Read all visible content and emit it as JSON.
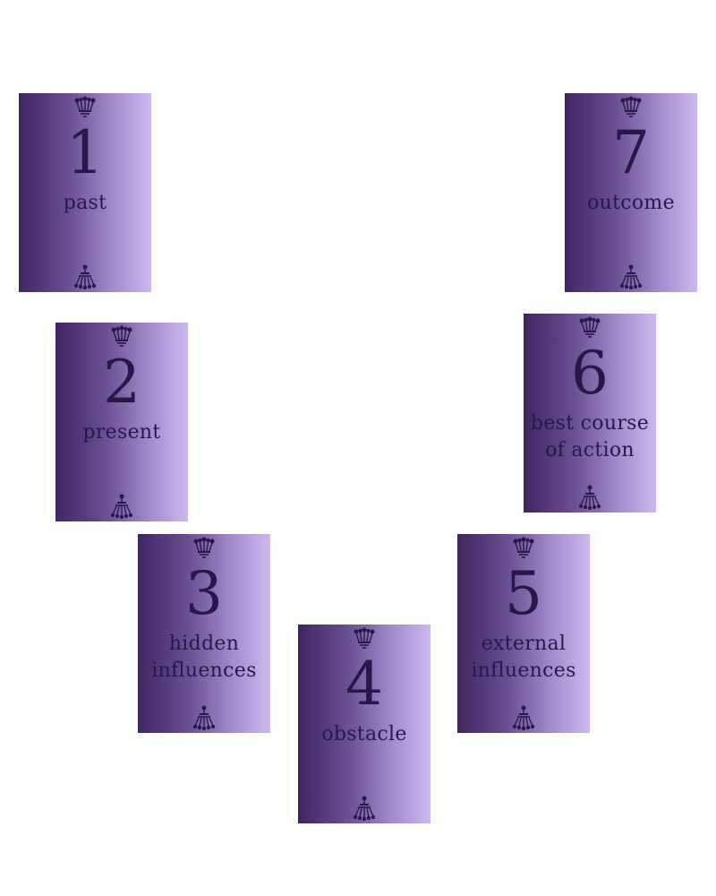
{
  "colors": {
    "card_gradient_dark": "#3f2560",
    "card_gradient_light": "#cdb8ee",
    "ink": "#2a1748",
    "background": "#ffffff"
  },
  "cards": [
    {
      "number": "1",
      "label": "past",
      "top_icon": "crown-icon",
      "bottom_icon": "tassel-icon"
    },
    {
      "number": "2",
      "label": "present",
      "top_icon": "crown-icon",
      "bottom_icon": "tassel-icon"
    },
    {
      "number": "3",
      "label": "hidden influences",
      "label_lines": [
        "hidden",
        "influences"
      ],
      "top_icon": "crown-icon",
      "bottom_icon": "tassel-icon"
    },
    {
      "number": "4",
      "label": "obstacle",
      "top_icon": "crown-icon",
      "bottom_icon": "tassel-icon"
    },
    {
      "number": "5",
      "label": "external influences",
      "label_lines": [
        "external",
        "influences"
      ],
      "top_icon": "crown-icon",
      "bottom_icon": "tassel-icon"
    },
    {
      "number": "6",
      "label": "best course of action",
      "label_lines": [
        "best course",
        "of action"
      ],
      "top_icon": "crown-icon",
      "bottom_icon": "tassel-icon"
    },
    {
      "number": "7",
      "label": "outcome",
      "top_icon": "crown-icon",
      "bottom_icon": "tassel-icon"
    }
  ]
}
